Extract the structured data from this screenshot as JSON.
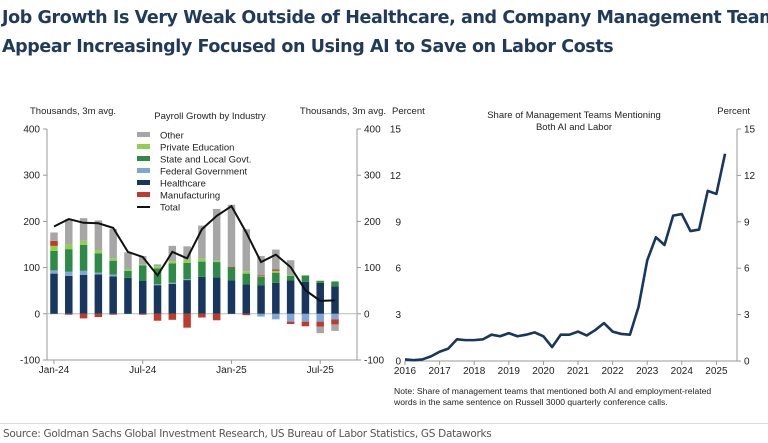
{
  "title_line1": "Job Growth Is Very Weak Outside of Healthcare, and Company Management Teams",
  "title_line2": "Appear Increasingly Focused on Using AI to Save on Labor Costs",
  "source": "Source: Goldman Sachs Global Investment Research, US Bureau of Labor Statistics, GS Dataworks",
  "chart_data": [
    {
      "type": "bar",
      "stacked": true,
      "title": "Payroll Growth by Industry",
      "ylabel_left": "Thousands, 3m avg.",
      "ylabel_right": "Thousands, 3m avg.",
      "ylim": [
        -100,
        400
      ],
      "yticks": [
        -100,
        0,
        100,
        200,
        300,
        400
      ],
      "xtick_labels": [
        {
          "label": "Jan-24",
          "index": 0
        },
        {
          "label": "Jul-24",
          "index": 6
        },
        {
          "label": "Jan-25",
          "index": 12
        },
        {
          "label": "Jul-25",
          "index": 18
        }
      ],
      "categories": [
        "Jan-24",
        "Feb-24",
        "Mar-24",
        "Apr-24",
        "May-24",
        "Jun-24",
        "Jul-24",
        "Aug-24",
        "Sep-24",
        "Oct-24",
        "Nov-24",
        "Dec-24",
        "Jan-25",
        "Feb-25",
        "Mar-25",
        "Apr-25",
        "May-25",
        "Jun-25",
        "Jul-25",
        "Aug-25"
      ],
      "legend_placement": "top-left",
      "series": [
        {
          "name": "Healthcare",
          "color": "#17375e",
          "values": [
            87,
            82,
            84,
            85,
            81,
            78,
            71,
            62,
            65,
            73,
            80,
            79,
            72,
            64,
            62,
            67,
            72,
            69,
            67,
            59
          ]
        },
        {
          "name": "Federal Government",
          "color": "#7ea6d6",
          "values": [
            7,
            9,
            9,
            4,
            4,
            0,
            0,
            2,
            2,
            2,
            0,
            0,
            0,
            0,
            -6,
            -12,
            -17,
            -17,
            -17,
            -12
          ]
        },
        {
          "name": "State and Local Govt.",
          "color": "#2e8b47",
          "values": [
            42,
            49,
            56,
            42,
            30,
            15,
            34,
            34,
            42,
            35,
            33,
            33,
            28,
            23,
            18,
            22,
            10,
            14,
            4,
            11
          ]
        },
        {
          "name": "Private Education",
          "color": "#8fd14f",
          "values": [
            11,
            11,
            9,
            7,
            5,
            4,
            2,
            5,
            5,
            7,
            6,
            3,
            0,
            5,
            1,
            4,
            2,
            0,
            1,
            0
          ]
        },
        {
          "name": "Manufacturing",
          "color": "#c0392b",
          "values": [
            11,
            -2,
            -10,
            -7,
            -2,
            0,
            -2,
            -15,
            -13,
            -30,
            -8,
            -14,
            2,
            -3,
            2,
            3,
            -5,
            -10,
            -11,
            -11
          ]
        },
        {
          "name": "Other",
          "color": "#a6a6a6",
          "values": [
            18,
            54,
            49,
            64,
            64,
            36,
            18,
            4,
            33,
            29,
            72,
            112,
            134,
            91,
            42,
            43,
            32,
            0,
            -14,
            -14
          ]
        }
      ],
      "line": {
        "name": "Total",
        "color": "#111111",
        "values": [
          189,
          205,
          197,
          196,
          186,
          134,
          123,
          83,
          134,
          120,
          183,
          212,
          233,
          176,
          112,
          128,
          101,
          51,
          28,
          29
        ]
      },
      "legend_order": [
        "Other",
        "Private Education",
        "State and Local Govt.",
        "Federal Government",
        "Healthcare",
        "Manufacturing",
        "Total"
      ]
    },
    {
      "type": "line",
      "title_line1": "Share of Management Teams Mentioning",
      "title_line2": "Both AI and Labor",
      "ylabel_left": "Percent",
      "ylabel_right": "Percent",
      "ylim": [
        0,
        15
      ],
      "yticks": [
        0,
        3,
        6,
        9,
        12,
        15
      ],
      "xlim": [
        2016,
        2025.75
      ],
      "xticks": [
        2016,
        2017,
        2018,
        2019,
        2020,
        2021,
        2022,
        2023,
        2024,
        2025
      ],
      "note_line1": "Note: Share of management teams that mentioned both AI and employment-related",
      "note_line2": "words in the same sentence on Russell 3000 quarterly conference calls.",
      "series": [
        {
          "name": "Share of Management Teams Mentioning Both AI and Labor",
          "color": "#17375e",
          "x": [
            2016,
            2016.25,
            2016.5,
            2016.75,
            2017,
            2017.25,
            2017.5,
            2017.75,
            2018,
            2018.25,
            2018.5,
            2018.75,
            2019,
            2019.25,
            2019.5,
            2019.75,
            2020,
            2020.25,
            2020.5,
            2020.75,
            2021,
            2021.25,
            2021.5,
            2021.75,
            2022,
            2022.25,
            2022.5,
            2022.75,
            2023,
            2023.25,
            2023.5,
            2023.75,
            2024,
            2024.25,
            2024.5,
            2024.75,
            2025,
            2025.25
          ],
          "y": [
            0.1,
            0.05,
            0.1,
            0.3,
            0.6,
            0.8,
            1.4,
            1.35,
            1.35,
            1.4,
            1.7,
            1.6,
            1.8,
            1.6,
            1.7,
            1.85,
            1.6,
            0.9,
            1.7,
            1.7,
            1.9,
            1.65,
            2.0,
            2.45,
            1.9,
            1.75,
            1.7,
            3.5,
            6.5,
            8.0,
            7.5,
            9.4,
            9.5,
            8.4,
            8.5,
            11.0,
            10.8,
            13.4
          ]
        }
      ]
    }
  ]
}
